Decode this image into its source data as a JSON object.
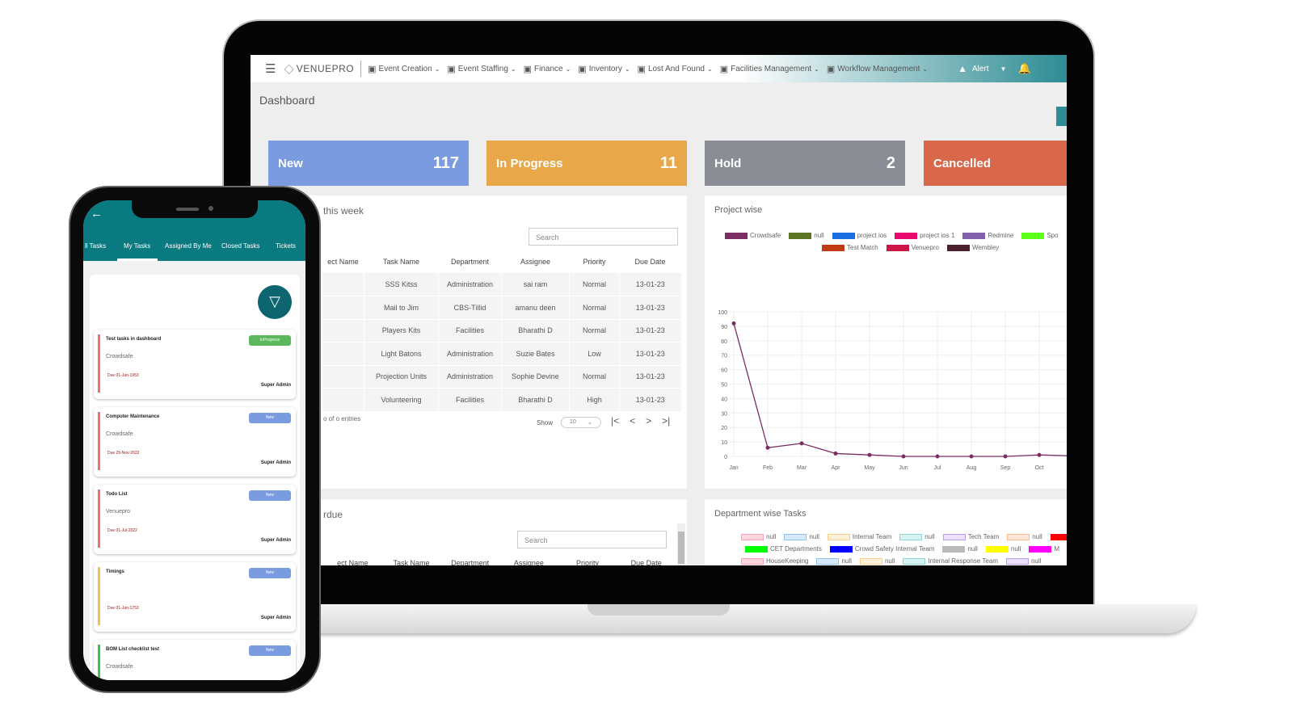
{
  "nav": {
    "brand": "VENUEPRO",
    "items": [
      {
        "label": "Event Creation",
        "icon": "plus-box-icon"
      },
      {
        "label": "Event Staffing",
        "icon": "id-card-icon"
      },
      {
        "label": "Finance",
        "icon": "finance-icon"
      },
      {
        "label": "Inventory",
        "icon": "boxes-icon"
      },
      {
        "label": "Lost And Found",
        "icon": "search-icon"
      },
      {
        "label": "Facilities Management",
        "icon": "clipboard-icon"
      },
      {
        "label": "Workflow Management",
        "icon": "gear-icon"
      }
    ],
    "alert": "Alert"
  },
  "page_title": "Dashboard",
  "status_cards": [
    {
      "label": "New",
      "count": "117",
      "color": "#7b9be0"
    },
    {
      "label": "In Progress",
      "count": "11",
      "color": "#e8a84a"
    },
    {
      "label": "Hold",
      "count": "2",
      "color": "#8a8d94"
    },
    {
      "label": "Cancelled",
      "count": "",
      "color": "#d9674a"
    }
  ],
  "week_table": {
    "title": "this week",
    "search_placeholder": "Search",
    "columns": [
      "ect Name",
      "Task Name",
      "Department",
      "Assignee",
      "Priority",
      "Due Date"
    ],
    "rows": [
      [
        "",
        "SSS Kitss",
        "Administration",
        "sai ram",
        "Normal",
        "13-01-23"
      ],
      [
        "",
        "Mail to Jim",
        "CBS-Tillid",
        "amanu deen",
        "Normal",
        "13-01-23"
      ],
      [
        "",
        "Players Kits",
        "Facilities",
        "Bharathi D",
        "Normal",
        "13-01-23"
      ],
      [
        "",
        "Light Batons",
        "Administration",
        "Suzie Bates",
        "Low",
        "13-01-23"
      ],
      [
        "",
        "Projection Units",
        "Administration",
        "Sophie Devine",
        "Normal",
        "13-01-23"
      ],
      [
        "",
        "Volunteering",
        "Facilities",
        "Bharathi D",
        "High",
        "13-01-23"
      ]
    ],
    "entries": "o of o entries",
    "show_label": "Show",
    "page_size": "10"
  },
  "overdue_table": {
    "title": "rdue",
    "search_placeholder": "Search",
    "columns": [
      "ect Name",
      "Task Name",
      "Department",
      "Assignee",
      "Priority",
      "Due Date"
    ]
  },
  "chart_data": {
    "type": "line",
    "title": "Project wise",
    "categories": [
      "Jan",
      "Feb",
      "Mar",
      "Apr",
      "May",
      "Jun",
      "Jul",
      "Aug",
      "Sep",
      "Oct"
    ],
    "ylim": [
      0,
      100
    ],
    "yticks": [
      0,
      10,
      20,
      30,
      40,
      50,
      60,
      70,
      80,
      90,
      100
    ],
    "grid": true,
    "legend_position": "top",
    "legend": [
      {
        "name": "Crowdsafe",
        "color": "#7a2e63"
      },
      {
        "name": "null",
        "color": "#5b7323"
      },
      {
        "name": "project ios",
        "color": "#1a6fe0"
      },
      {
        "name": "project ios 1",
        "color": "#e8086b"
      },
      {
        "name": "Redmine",
        "color": "#8060a8"
      },
      {
        "name": "Spo",
        "color": "#5cff1a"
      },
      {
        "name": "Test Match",
        "color": "#c03a12"
      },
      {
        "name": "Venuepro",
        "color": "#cc1447"
      },
      {
        "name": "Wembley",
        "color": "#4a2030"
      }
    ],
    "series": [
      {
        "name": "Crowdsafe",
        "color": "#7a2e63",
        "values": [
          92,
          6,
          9,
          2,
          1,
          0,
          0,
          0,
          0,
          1
        ]
      }
    ]
  },
  "dept": {
    "title": "Department wise Tasks",
    "legend": [
      [
        {
          "name": "null",
          "color": "#ffd6de",
          "border": "#ff9fb3"
        },
        {
          "name": "null",
          "color": "#d6eaff",
          "border": "#8fc4f5"
        },
        {
          "name": "Internal Team",
          "color": "#fff0d9",
          "border": "#ffcf8a"
        },
        {
          "name": "null",
          "color": "#d9f3f3",
          "border": "#8fd6d6"
        },
        {
          "name": "Tech Team",
          "color": "#ebe0ff",
          "border": "#b89cf5"
        },
        {
          "name": "null",
          "color": "#ffe6d6",
          "border": "#ffb98a"
        },
        {
          "name": "",
          "color": "#ff0000",
          "border": "#ff0000"
        }
      ],
      [
        {
          "name": "CET Departments",
          "color": "#00ff00",
          "border": "#00ff00"
        },
        {
          "name": "Crowd Safety Internal Team",
          "color": "#0000ff",
          "border": "#0000ff"
        },
        {
          "name": "null",
          "color": "#bbbbbb",
          "border": "#bbbbbb"
        },
        {
          "name": "null",
          "color": "#ffff00",
          "border": "#ffff00"
        },
        {
          "name": "M",
          "color": "#ff00ff",
          "border": "#ff00ff"
        }
      ],
      [
        {
          "name": "HouseKeeping",
          "color": "#ffd6de",
          "border": "#ff9fb3"
        },
        {
          "name": "null",
          "color": "#d6eaff",
          "border": "#8fc4f5"
        },
        {
          "name": "null",
          "color": "#fff0d9",
          "border": "#ffcf8a"
        },
        {
          "name": "Internal Response Team",
          "color": "#d9f3f3",
          "border": "#8fd6d6"
        },
        {
          "name": "null",
          "color": "#ebe0ff",
          "border": "#b89cf5"
        }
      ]
    ]
  },
  "phone": {
    "tabs": [
      "ll Tasks",
      "My Tasks",
      "Assigned By Me",
      "Closed Tasks",
      "Tickets"
    ],
    "active_tab": 1,
    "tasks": [
      {
        "title": "Test tasks in dashboard",
        "project": "Crowdsafe",
        "due": "Due 01-Jan-1953",
        "owner": "Super Admin",
        "status": "InProgress",
        "status_color": "#5cb85c",
        "bar": "#f07070"
      },
      {
        "title": "Computer Maintenance",
        "project": "Crowdsafe",
        "due": "Due 25-Nov-2022",
        "owner": "Super Admin",
        "status": "New",
        "status_color": "#7b9be0",
        "bar": "#f07070"
      },
      {
        "title": "Todo List",
        "project": "Venuepro",
        "due": "Due 01-Jul-2022",
        "owner": "Super Admin",
        "status": "New",
        "status_color": "#7b9be0",
        "bar": "#f07070"
      },
      {
        "title": "Timings",
        "project": "",
        "due": "Due 01-Jan-1753",
        "owner": "Super Admin",
        "status": "New",
        "status_color": "#7b9be0",
        "bar": "#f5c050"
      },
      {
        "title": "BOM List checklist test",
        "project": "Crowdsafe",
        "due": "",
        "owner": "",
        "status": "New",
        "status_color": "#7b9be0",
        "bar": "#3cc24a"
      }
    ]
  }
}
